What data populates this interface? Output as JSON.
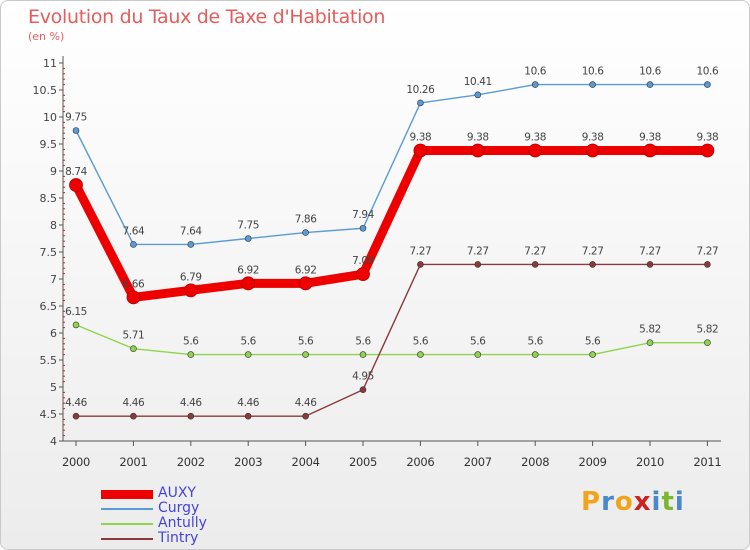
{
  "header": {
    "title": "Evolution du Taux de Taxe d'Habitation",
    "unit_note": "(en %)"
  },
  "brand": {
    "letters": [
      "P",
      "r",
      "o",
      "x",
      "i",
      "t",
      "i"
    ],
    "colors": [
      "#f2a31c",
      "#4a88c8",
      "#f2a31c",
      "#cc2222",
      "#4a88c8",
      "#7cb82f",
      "#4a88c8"
    ]
  },
  "chart_data": {
    "type": "line",
    "x": [
      "2000",
      "2001",
      "2002",
      "2003",
      "2004",
      "2005",
      "2006",
      "2007",
      "2008",
      "2009",
      "2010",
      "2011"
    ],
    "ylim": [
      4,
      11
    ],
    "yticks": [
      "4",
      "4.5",
      "5",
      "5.5",
      "6",
      "6.5",
      "7",
      "7.5",
      "8",
      "8.5",
      "9",
      "9.5",
      "10",
      "10.5",
      "11"
    ],
    "grid": false,
    "legend_position": "bottom-left",
    "series": [
      {
        "name": "Curgy",
        "color": "#5b9bd5",
        "values": [
          9.75,
          7.64,
          7.64,
          7.75,
          7.86,
          7.94,
          10.26,
          10.41,
          10.6,
          10.6,
          10.6,
          10.6
        ],
        "labels": [
          "9.75",
          "7.64",
          "7.64",
          "7.75",
          "7.86",
          "7.94",
          "10.26",
          "10.41",
          "10.6",
          "10.6",
          "10.6",
          "10.6"
        ]
      },
      {
        "name": "Antully",
        "color": "#8fd44f",
        "values": [
          6.15,
          5.71,
          5.6,
          5.6,
          5.6,
          5.6,
          5.6,
          5.6,
          5.6,
          5.6,
          5.82,
          5.82
        ],
        "labels": [
          "6.15",
          "5.71",
          "5.6",
          "5.6",
          "5.6",
          "5.6",
          "5.6",
          "5.6",
          "5.6",
          "5.6",
          "5.82",
          "5.82"
        ]
      },
      {
        "name": "Tintry",
        "color": "#8b3a3a",
        "values": [
          4.46,
          4.46,
          4.46,
          4.46,
          4.46,
          4.95,
          7.27,
          7.27,
          7.27,
          7.27,
          7.27,
          7.27
        ],
        "labels": [
          "4.46",
          "4.46",
          "4.46",
          "4.46",
          "4.46",
          "4.95",
          "7.27",
          "7.27",
          "7.27",
          "7.27",
          "7.27",
          "7.27"
        ]
      },
      {
        "name": "AUXY",
        "color": "#ee0000",
        "values": [
          8.74,
          6.66,
          6.79,
          6.92,
          6.92,
          7.09,
          9.38,
          9.38,
          9.38,
          9.38,
          9.38,
          9.38
        ],
        "labels": [
          "8.74",
          "6.66",
          "6.79",
          "6.92",
          "6.92",
          "7.09",
          "9.38",
          "9.38",
          "9.38",
          "9.38",
          "9.38",
          "9.38"
        ]
      }
    ]
  }
}
